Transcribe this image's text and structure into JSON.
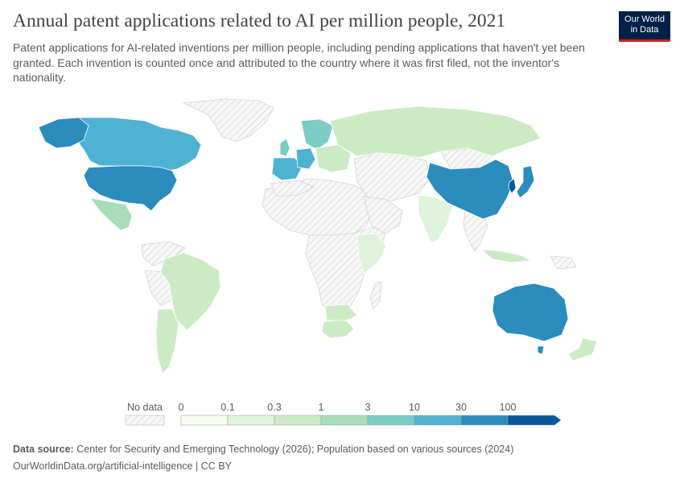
{
  "header": {
    "title": "Annual patent applications related to AI per million people, 2021",
    "subtitle": "Patent applications for AI-related inventions per million people, including pending applications that haven't yet been granted. Each invention is counted once and attributed to the country where it was first filed, not the inventor's nationality."
  },
  "logo": {
    "line1": "Our World",
    "line2": "in Data"
  },
  "legend": {
    "no_data_label": "No data",
    "ticks": [
      "0",
      "0.1",
      "0.3",
      "1",
      "3",
      "10",
      "30",
      "100"
    ],
    "colors": [
      "#f7fcf0",
      "#e0f3db",
      "#ccebc5",
      "#a8ddb5",
      "#7bccc4",
      "#4eb3d3",
      "#2b8cbe",
      "#08589e"
    ]
  },
  "colors": {
    "no_data": "#ececec",
    "hatch": "#c8c8c8",
    "border": "#ffffff"
  },
  "footer": {
    "source_label": "Data source:",
    "source_text": "Center for Security and Emerging Technology (2026); Population based on various sources (2024)",
    "url_license": "OurWorldinData.org/artificial-intelligence | CC BY"
  },
  "map_data": [
    {
      "name": "South Korea",
      "bin": 7
    },
    {
      "name": "United States",
      "bin": 6
    },
    {
      "name": "China",
      "bin": 6
    },
    {
      "name": "Japan",
      "bin": 6
    },
    {
      "name": "Australia",
      "bin": 6
    },
    {
      "name": "Canada",
      "bin": 5
    },
    {
      "name": "Germany",
      "bin": 5
    },
    {
      "name": "Finland",
      "bin": 4
    },
    {
      "name": "United Kingdom",
      "bin": 4
    },
    {
      "name": "Mexico",
      "bin": 3
    },
    {
      "name": "Russia",
      "bin": 2
    },
    {
      "name": "Brazil",
      "bin": 2
    },
    {
      "name": "South Africa",
      "bin": 2
    },
    {
      "name": "India",
      "bin": 1
    }
  ]
}
